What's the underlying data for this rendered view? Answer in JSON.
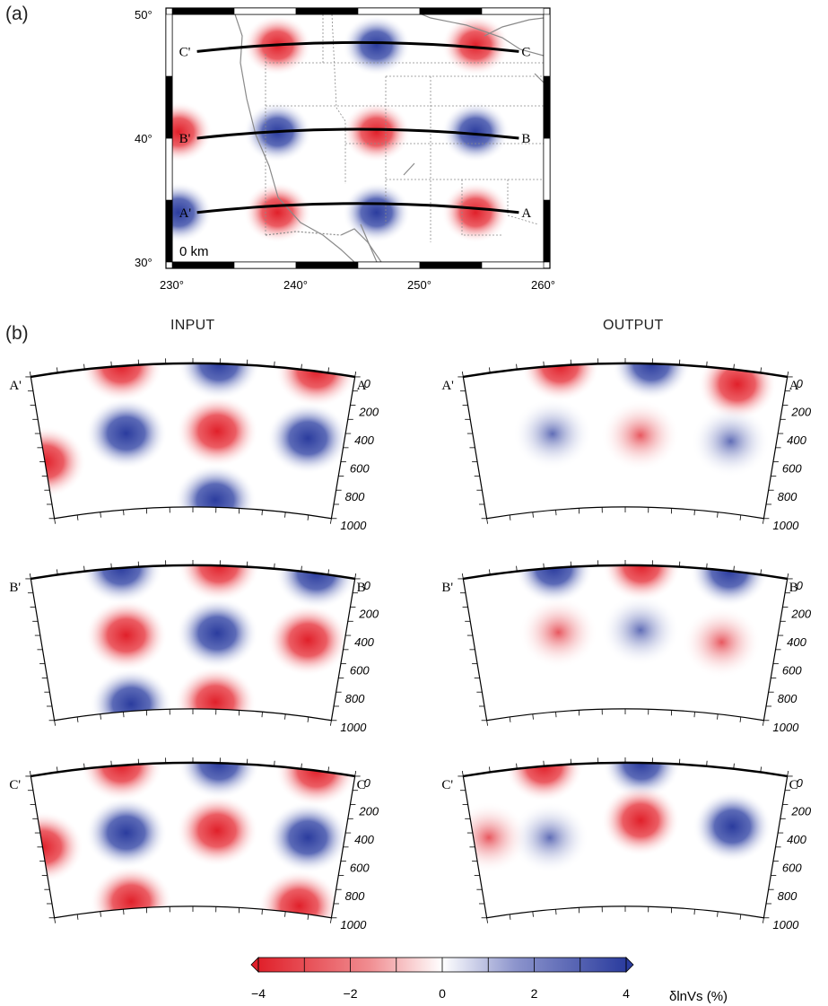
{
  "panel_a": {
    "label": "(a)",
    "depth_label": "0 km",
    "lat_ticks": [
      "50°",
      "40°",
      "30°"
    ],
    "lon_ticks": [
      "230°",
      "240°",
      "250°",
      "260°"
    ],
    "profiles": [
      {
        "start": "C'",
        "end": "C",
        "lat": 47
      },
      {
        "start": "B'",
        "end": "B",
        "lat": 40
      },
      {
        "start": "A'",
        "end": "A",
        "lat": 34
      }
    ],
    "anomalies": [
      {
        "lat": 47.5,
        "lon": 238.5,
        "sign": "slow"
      },
      {
        "lat": 47.5,
        "lon": 246.5,
        "sign": "fast"
      },
      {
        "lat": 47.5,
        "lon": 254.5,
        "sign": "slow"
      },
      {
        "lat": 40.5,
        "lon": 230.5,
        "sign": "slow"
      },
      {
        "lat": 40.5,
        "lon": 238.5,
        "sign": "fast"
      },
      {
        "lat": 40.5,
        "lon": 246.5,
        "sign": "slow"
      },
      {
        "lat": 40.5,
        "lon": 254.5,
        "sign": "fast"
      },
      {
        "lat": 34.0,
        "lon": 230.5,
        "sign": "fast"
      },
      {
        "lat": 34.0,
        "lon": 238.5,
        "sign": "slow"
      },
      {
        "lat": 34.0,
        "lon": 246.5,
        "sign": "fast"
      },
      {
        "lat": 34.0,
        "lon": 254.5,
        "sign": "slow"
      }
    ]
  },
  "panel_b": {
    "label": "(b)",
    "input_title": "INPUT",
    "output_title": "OUTPUT",
    "depth_ticks": [
      "0",
      "200",
      "400",
      "600",
      "800",
      "1000"
    ],
    "rows": [
      {
        "start": "A'",
        "end": "A",
        "input": [
          {
            "u": 0.28,
            "d": 0.0,
            "sign": "slow"
          },
          {
            "u": 0.58,
            "d": 0.0,
            "sign": "fast"
          },
          {
            "u": 0.88,
            "d": 0.0,
            "sign": "slow"
          },
          {
            "u": 0.28,
            "d": 0.47,
            "sign": "fast"
          },
          {
            "u": 0.58,
            "d": 0.47,
            "sign": "slow"
          },
          {
            "u": 0.88,
            "d": 0.47,
            "sign": "fast"
          },
          {
            "u": 0.0,
            "d": 0.6,
            "sign": "slow"
          },
          {
            "u": 0.58,
            "d": 0.95,
            "sign": "fast"
          }
        ],
        "output": [
          {
            "u": 0.3,
            "d": 0.0,
            "sign": "slow"
          },
          {
            "u": 0.58,
            "d": 0.0,
            "sign": "fast"
          },
          {
            "u": 0.85,
            "d": 0.1,
            "sign": "slow"
          },
          {
            "u": 0.26,
            "d": 0.47,
            "sign": "fast"
          },
          {
            "u": 0.55,
            "d": 0.5,
            "sign": "slow"
          },
          {
            "u": 0.85,
            "d": 0.5,
            "sign": "fast"
          }
        ]
      },
      {
        "start": "B'",
        "end": "B",
        "input": [
          {
            "u": 0.28,
            "d": 0.0,
            "sign": "fast"
          },
          {
            "u": 0.58,
            "d": 0.0,
            "sign": "slow"
          },
          {
            "u": 0.88,
            "d": 0.0,
            "sign": "fast"
          },
          {
            "u": 0.28,
            "d": 0.47,
            "sign": "slow"
          },
          {
            "u": 0.58,
            "d": 0.47,
            "sign": "fast"
          },
          {
            "u": 0.88,
            "d": 0.47,
            "sign": "slow"
          },
          {
            "u": 0.28,
            "d": 0.95,
            "sign": "fast"
          },
          {
            "u": 0.58,
            "d": 0.95,
            "sign": "slow"
          }
        ],
        "output": [
          {
            "u": 0.28,
            "d": 0.0,
            "sign": "fast"
          },
          {
            "u": 0.55,
            "d": 0.0,
            "sign": "slow"
          },
          {
            "u": 0.82,
            "d": 0.0,
            "sign": "fast"
          },
          {
            "u": 0.28,
            "d": 0.45,
            "sign": "slow"
          },
          {
            "u": 0.55,
            "d": 0.45,
            "sign": "fast"
          },
          {
            "u": 0.82,
            "d": 0.5,
            "sign": "slow"
          }
        ]
      },
      {
        "start": "C'",
        "end": "C",
        "input": [
          {
            "u": 0.28,
            "d": 0.0,
            "sign": "slow"
          },
          {
            "u": 0.58,
            "d": 0.0,
            "sign": "fast"
          },
          {
            "u": 0.88,
            "d": 0.0,
            "sign": "slow"
          },
          {
            "u": 0.28,
            "d": 0.47,
            "sign": "fast"
          },
          {
            "u": 0.58,
            "d": 0.47,
            "sign": "slow"
          },
          {
            "u": 0.88,
            "d": 0.47,
            "sign": "fast"
          },
          {
            "u": 0.0,
            "d": 0.5,
            "sign": "slow"
          },
          {
            "u": 0.28,
            "d": 0.95,
            "sign": "slow"
          },
          {
            "u": 0.88,
            "d": 0.95,
            "sign": "slow"
          }
        ],
        "output": [
          {
            "u": 0.25,
            "d": 0.0,
            "sign": "slow"
          },
          {
            "u": 0.55,
            "d": 0.0,
            "sign": "fast"
          },
          {
            "u": 0.25,
            "d": 0.5,
            "sign": "fast"
          },
          {
            "u": 0.55,
            "d": 0.4,
            "sign": "slow"
          },
          {
            "u": 0.05,
            "d": 0.45,
            "sign": "slow"
          },
          {
            "u": 0.85,
            "d": 0.4,
            "sign": "fast"
          }
        ]
      }
    ]
  },
  "colorbar": {
    "tick_labels": [
      "−4",
      "−2",
      "0",
      "2",
      "4"
    ],
    "label": "δlnVs (%)",
    "min": -4,
    "max": 4,
    "colors": {
      "slow": "#e0202a",
      "fast": "#2b3c9e",
      "neutral": "#ffffff"
    }
  }
}
